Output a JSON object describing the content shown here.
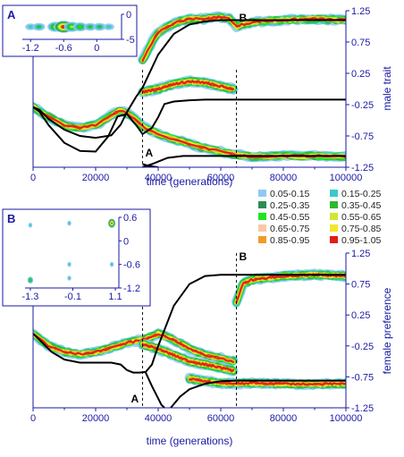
{
  "chart_data": [
    {
      "type": "heatmap",
      "panel": "male",
      "xlabel": "time (generations)",
      "ylabel": "male trait",
      "xlim": [
        0,
        100000
      ],
      "ylim": [
        -1.25,
        1.25
      ],
      "x_ticks": [
        0,
        20000,
        40000,
        60000,
        80000,
        100000
      ],
      "y_ticks": [
        -1.25,
        -0.75,
        -0.25,
        0.25,
        0.75,
        1.25
      ],
      "markers": [
        {
          "label": "A",
          "x": 35000
        },
        {
          "label": "B",
          "x": 65000
        }
      ],
      "curves": [
        {
          "x": [
            0,
            2000,
            5000,
            10000,
            15000,
            20000,
            25000,
            28000,
            30000,
            33000,
            35000,
            40000,
            45000,
            50000,
            55000,
            60000,
            62000,
            65000,
            70000,
            80000,
            90000,
            100000
          ],
          "y": [
            -0.29,
            -0.33,
            -0.48,
            -0.65,
            -0.75,
            -0.78,
            -0.74,
            -0.57,
            -0.37,
            -0.12,
            0.02,
            0.55,
            0.88,
            1.03,
            1.08,
            1.1,
            1.1,
            1.1,
            1.1,
            1.1,
            1.1,
            1.1
          ]
        },
        {
          "x": [
            0,
            2000,
            5000,
            10000,
            15000,
            20000,
            24000,
            27000,
            30000,
            33000,
            35000,
            38000,
            40000,
            42000,
            45000,
            50000,
            55000,
            60000,
            65000,
            70000,
            80000,
            90000,
            100000
          ],
          "y": [
            -0.29,
            -0.36,
            -0.58,
            -0.86,
            -0.99,
            -1.0,
            -0.76,
            -0.44,
            -0.4,
            -0.58,
            -0.72,
            -0.62,
            -0.45,
            -0.24,
            -0.2,
            -0.18,
            -0.17,
            -0.17,
            -0.17,
            -0.17,
            -0.17,
            -0.17,
            -0.17
          ]
        },
        {
          "x": [
            35000,
            38000,
            40000,
            43000,
            48000,
            55000,
            60000,
            65000,
            70000,
            80000,
            90000,
            100000
          ],
          "y": [
            -1.25,
            -1.2,
            -1.16,
            -1.1,
            -1.07,
            -1.07,
            -1.07,
            -1.07,
            -1.07,
            -1.07,
            -1.07,
            -1.07
          ]
        },
        {
          "x": [
            35000,
            37000,
            40000
          ],
          "y": [
            -1.2,
            -1.23,
            -1.25
          ]
        }
      ],
      "density_ridges": [
        {
          "x": [
            0,
            5000,
            10000,
            15000,
            20000,
            22000,
            25000,
            28000,
            32000,
            35000,
            40000,
            45000,
            50000,
            55000,
            60000,
            62000,
            65000,
            70000,
            80000,
            90000,
            100000
          ],
          "y": [
            -0.29,
            -0.45,
            -0.58,
            -0.62,
            -0.58,
            -0.52,
            -0.42,
            -0.33,
            -0.45,
            -0.6,
            -0.72,
            -0.8,
            -0.88,
            -0.95,
            -1.0,
            -1.02,
            -1.05,
            -1.08,
            -1.07,
            -1.07,
            -1.08
          ]
        },
        {
          "x": [
            35000,
            38000,
            40000,
            45000,
            50000,
            55000,
            60000,
            63000,
            65000,
            70000,
            80000,
            90000,
            100000
          ],
          "y": [
            0.45,
            0.75,
            0.9,
            1.05,
            1.12,
            1.12,
            1.15,
            1.12,
            1.0,
            1.07,
            1.1,
            1.12,
            1.1
          ]
        },
        {
          "x": [
            35000,
            40000,
            45000,
            50000,
            55000,
            60000,
            64000
          ],
          "y": [
            -0.05,
            0.0,
            0.08,
            0.12,
            0.1,
            0.04,
            0.0
          ]
        }
      ]
    },
    {
      "type": "heatmap",
      "panel": "female",
      "xlabel": "time (generations)",
      "ylabel": "female preference",
      "xlim": [
        0,
        100000
      ],
      "ylim": [
        -1.25,
        1.25
      ],
      "x_ticks": [
        0,
        20000,
        40000,
        60000,
        80000,
        100000
      ],
      "y_ticks": [
        -1.25,
        -0.75,
        -0.25,
        0.25,
        0.75,
        1.25
      ],
      "markers": [
        {
          "label": "A",
          "x": 35000
        },
        {
          "label": "B",
          "x": 65000
        }
      ],
      "curves": [
        {
          "x": [
            0,
            3000,
            6000,
            10000,
            15000,
            20000,
            25000,
            28000,
            30000,
            32000,
            34000,
            36000,
            38000,
            40000,
            45000,
            50000,
            55000,
            60000,
            63000,
            65000,
            70000,
            80000,
            90000,
            100000
          ],
          "y": [
            -0.05,
            -0.2,
            -0.35,
            -0.47,
            -0.52,
            -0.52,
            -0.52,
            -0.55,
            -0.64,
            -0.68,
            -0.68,
            -0.67,
            -0.55,
            -0.25,
            0.4,
            0.75,
            0.88,
            0.9,
            0.9,
            0.9,
            0.9,
            0.9,
            0.9,
            0.9
          ]
        },
        {
          "x": [
            36000,
            38000,
            40000,
            41000,
            42000
          ],
          "y": [
            -0.68,
            -0.9,
            -1.1,
            -1.2,
            -1.25
          ]
        },
        {
          "x": [
            44000,
            47000,
            50000,
            55000,
            60000,
            65000,
            70000,
            80000,
            90000,
            100000
          ],
          "y": [
            -1.25,
            -1.07,
            -0.95,
            -0.86,
            -0.82,
            -0.81,
            -0.81,
            -0.81,
            -0.81,
            -0.81
          ]
        }
      ],
      "density_ridges": [
        {
          "x": [
            0,
            5000,
            10000,
            15000,
            20000,
            25000,
            30000,
            35000,
            38000,
            40000,
            45000,
            50000,
            55000,
            60000,
            64000
          ],
          "y": [
            -0.05,
            -0.25,
            -0.35,
            -0.38,
            -0.35,
            -0.28,
            -0.2,
            -0.15,
            -0.1,
            -0.05,
            -0.15,
            -0.3,
            -0.4,
            -0.45,
            -0.5
          ]
        },
        {
          "x": [
            35000,
            40000,
            45000,
            50000,
            55000,
            60000,
            64000
          ],
          "y": [
            -0.22,
            -0.3,
            -0.4,
            -0.5,
            -0.55,
            -0.6,
            -0.65
          ]
        },
        {
          "x": [
            50000,
            55000,
            60000,
            65000,
            70000,
            80000,
            90000,
            100000
          ],
          "y": [
            -0.78,
            -0.82,
            -0.85,
            -0.86,
            -0.85,
            -0.86,
            -0.87,
            -0.86
          ]
        },
        {
          "x": [
            65000,
            67000,
            70000,
            80000,
            90000,
            100000
          ],
          "y": [
            0.45,
            0.75,
            0.82,
            0.88,
            0.9,
            0.88
          ]
        }
      ]
    },
    {
      "type": "scatter",
      "panel": "inset-A",
      "title": "A",
      "x_ticks": [
        -1.2,
        -0.6,
        0
      ],
      "y_ticks": [
        0,
        -5
      ],
      "xlim": [
        -1.35,
        0.45
      ],
      "ylim": [
        -5,
        0
      ],
      "points": [
        {
          "x": -1.2,
          "y": -2.5,
          "level": 1
        },
        {
          "x": -1.05,
          "y": -2.5,
          "level": 2
        },
        {
          "x": -0.75,
          "y": -2.5,
          "level": 4
        },
        {
          "x": -0.6,
          "y": -2.5,
          "level": 6
        },
        {
          "x": -0.45,
          "y": -2.5,
          "level": 4
        },
        {
          "x": -0.3,
          "y": -2.5,
          "level": 3
        },
        {
          "x": -0.12,
          "y": -2.5,
          "level": 2
        },
        {
          "x": 0.05,
          "y": -2.5,
          "level": 2
        },
        {
          "x": 0.22,
          "y": -2.5,
          "level": 1
        }
      ]
    },
    {
      "type": "scatter",
      "panel": "inset-B",
      "title": "B",
      "x_ticks": [
        -1.3,
        -0.1,
        1.1
      ],
      "y_ticks": [
        0.6,
        0,
        -0.6,
        -1.2
      ],
      "xlim": [
        -1.45,
        1.2
      ],
      "ylim": [
        -1.2,
        0.6
      ],
      "points": [
        {
          "x": 1.0,
          "y": 0.45,
          "level": 5
        },
        {
          "x": -0.2,
          "y": 0.45,
          "level": 1
        },
        {
          "x": -1.3,
          "y": 0.4,
          "level": 1
        },
        {
          "x": 1.0,
          "y": -0.6,
          "level": 1
        },
        {
          "x": -0.2,
          "y": -0.6,
          "level": 1
        },
        {
          "x": -1.3,
          "y": -1.0,
          "level": 3
        },
        {
          "x": -0.2,
          "y": -0.95,
          "level": 1
        }
      ]
    }
  ],
  "legend": {
    "entries": [
      {
        "label": "0.05-0.15",
        "color": "#8fc9f2"
      },
      {
        "label": "0.15-0.25",
        "color": "#3ec8c8"
      },
      {
        "label": "0.25-0.35",
        "color": "#2e8b57"
      },
      {
        "label": "0.35-0.45",
        "color": "#2db82d"
      },
      {
        "label": "0.45-0.55",
        "color": "#1ee61e"
      },
      {
        "label": "0.55-0.65",
        "color": "#cde832"
      },
      {
        "label": "0.65-0.75",
        "color": "#f8c8a8"
      },
      {
        "label": "0.75-0.85",
        "color": "#f2e82a"
      },
      {
        "label": "0.85-0.95",
        "color": "#f39a2a"
      },
      {
        "label": "0.95-1.05",
        "color": "#e11d12"
      }
    ]
  }
}
